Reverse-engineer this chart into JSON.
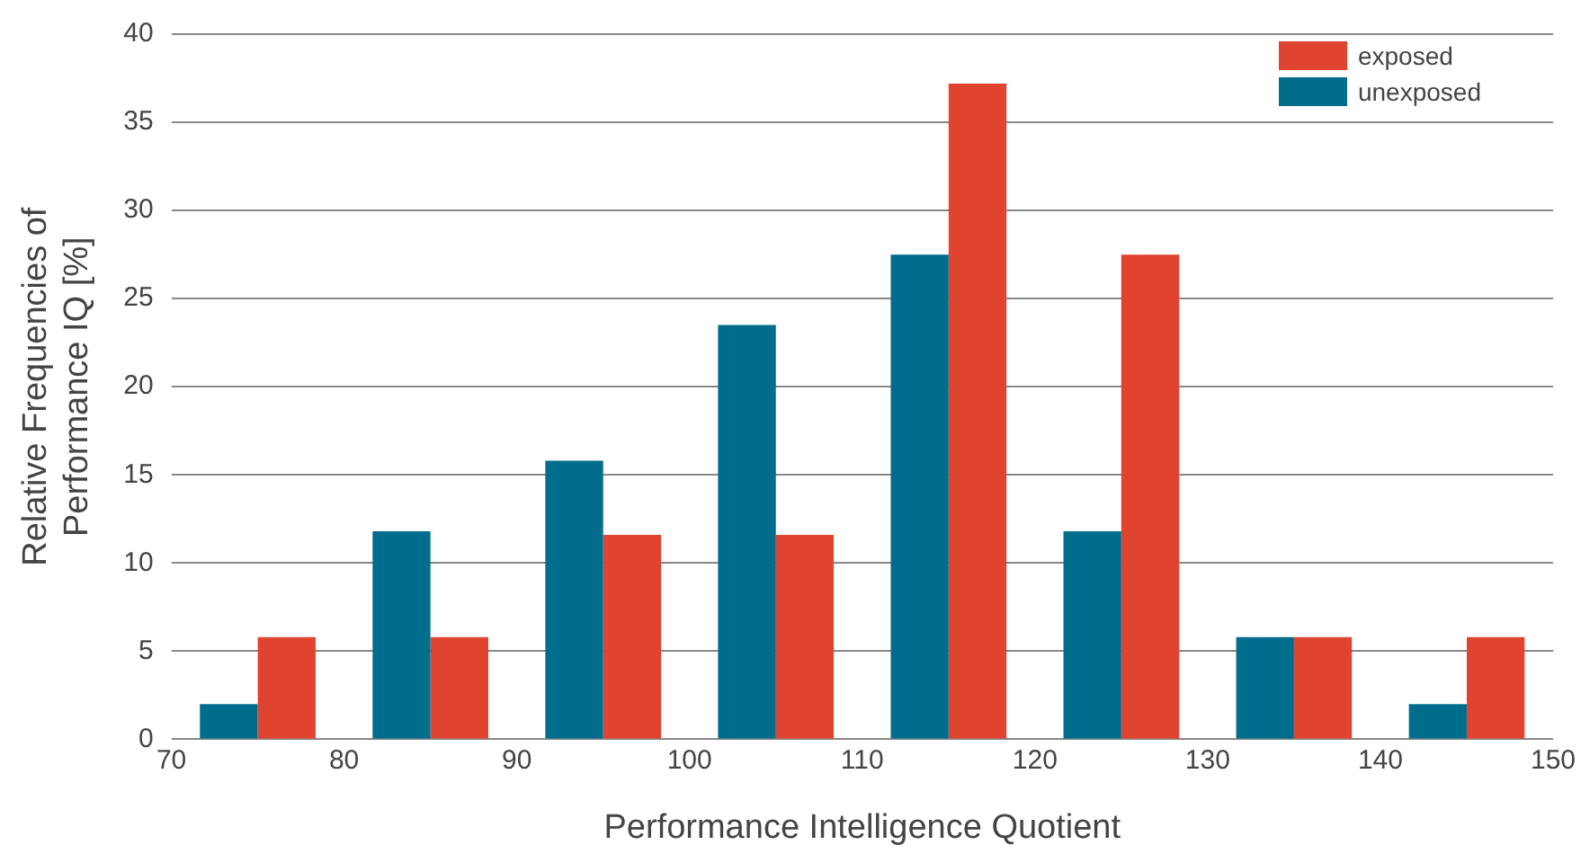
{
  "chart_data": {
    "type": "histogram",
    "xlabel": "Performance Intelligence Quotient",
    "ylabel": "Relative Frequencies of Performance IQ [%]",
    "bins": [
      70,
      80,
      90,
      100,
      110,
      120,
      130,
      140,
      150
    ],
    "series": [
      {
        "name": "unexposed",
        "color": "#006d8c",
        "values": [
          2,
          11.8,
          15.8,
          23.5,
          27.5,
          11.8,
          5.8,
          2
        ]
      },
      {
        "name": "exposed",
        "color": "#e04430",
        "values": [
          5.8,
          5.8,
          11.6,
          11.6,
          37.2,
          27.5,
          5.8,
          5.8
        ]
      }
    ],
    "xlim": [
      70,
      150
    ],
    "xticks": [
      70,
      80,
      90,
      100,
      110,
      120,
      130,
      140,
      150
    ],
    "ylim": [
      0,
      40
    ],
    "yticks": [
      0,
      5,
      10,
      15,
      20,
      25,
      30,
      35,
      40
    ],
    "grid": "y",
    "legend": "top right"
  }
}
